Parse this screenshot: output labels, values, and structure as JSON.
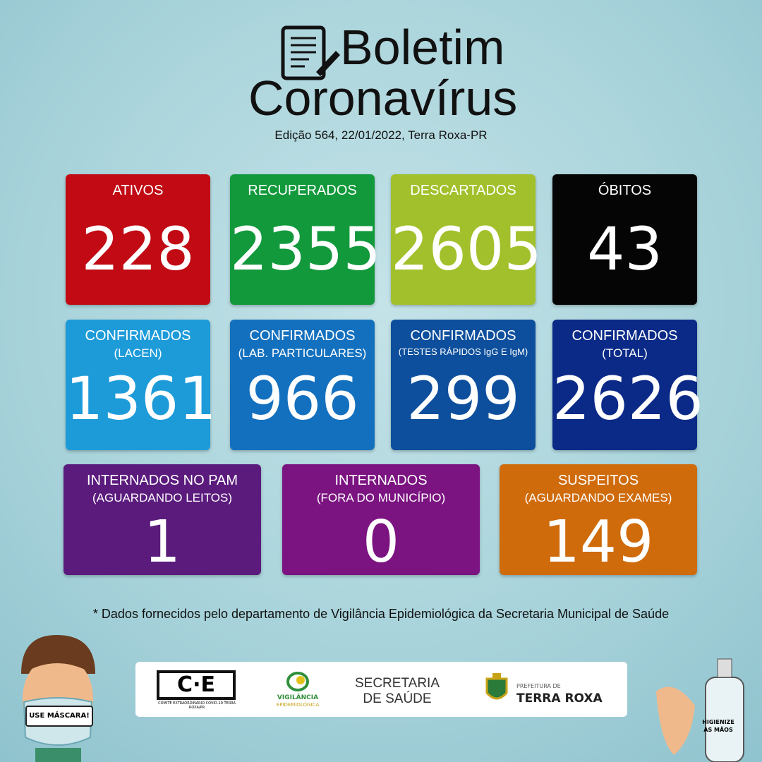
{
  "header": {
    "title_line1": "Boletim",
    "title_line2": "Coronavírus",
    "edition": "Edição 564, 22/01/2022, Terra Roxa-PR"
  },
  "cards": [
    {
      "label": "ATIVOS",
      "value": "228",
      "color": "#c10a14"
    },
    {
      "label": "RECUPERADOS",
      "value": "2355",
      "color": "#12993c"
    },
    {
      "label": "DESCARTADOS",
      "value": "2605",
      "color": "#a2c02b"
    },
    {
      "label": "ÓBITOS",
      "value": "43",
      "color": "#050505"
    },
    {
      "label": "CONFIRMADOS",
      "sublabel": "(LACEN)",
      "value": "1361",
      "color": "#1d9bd9"
    },
    {
      "label": "CONFIRMADOS",
      "sublabel": "(LAB. PARTICULARES)",
      "value": "966",
      "color": "#1370be"
    },
    {
      "label": "CONFIRMADOS",
      "sublabel": "(TESTES RÁPIDOS IgG E IgM)",
      "value": "299",
      "color": "#0d4f9d"
    },
    {
      "label": "CONFIRMADOS",
      "sublabel": "(TOTAL)",
      "value": "2626",
      "color": "#0b2a88"
    },
    {
      "label": "INTERNADOS NO PAM",
      "sublabel": "(AGUARDANDO LEITOS)",
      "value": "1",
      "color": "#5b1b7d"
    },
    {
      "label": "INTERNADOS",
      "sublabel": "(FORA DO MUNICÍPIO)",
      "value": "0",
      "color": "#7b1381"
    },
    {
      "label": "SUSPEITOS",
      "sublabel": "(AGUARDANDO EXAMES)",
      "value": "149",
      "color": "#cf6b0b"
    }
  ],
  "footnote": "* Dados fornecidos pelo departamento de Vigilância Epidemiológica da Secretaria Municipal de Saúde",
  "logos": {
    "coe_mark": "C·E",
    "coe_caption": "COMITÊ EXTRAORDINÁRIO COVID-19 TERRA ROXA/PR",
    "vigilancia_line1": "VIGILÂNCIA",
    "vigilancia_line2": "EPIDEMIOLÓGICA",
    "secretaria_line1": "SECRETARIA",
    "secretaria_line2": "DE SAÚDE",
    "prefeitura_line1": "PREFEITURA DE",
    "prefeitura_line2": "TERRA ROXA"
  },
  "badges": {
    "mask": "USE MÁSCARA!",
    "hands": "HIGIENIZE AS MÃOS"
  }
}
